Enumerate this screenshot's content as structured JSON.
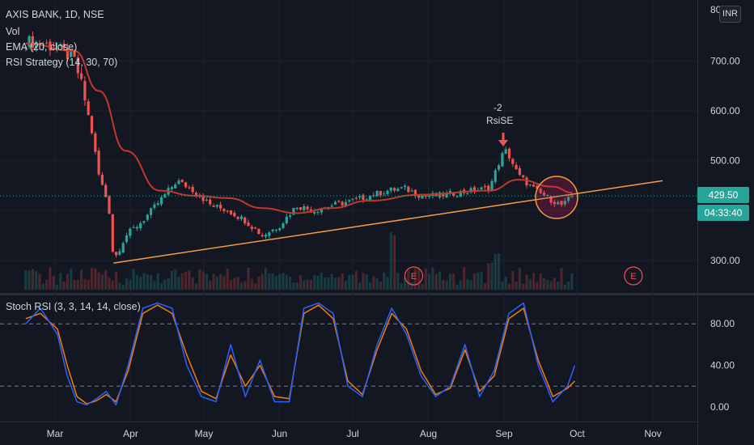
{
  "header": {
    "symbol_title": "AXIS BANK, 1D, NSE",
    "indicator_vol": "Vol",
    "indicator_ema": "EMA (20, close)",
    "indicator_rsi_strategy": "RSI Strategy (14, 30, 70)",
    "currency": "INR"
  },
  "price_labels": {
    "last_price": "429.50",
    "countdown": "04:33:40",
    "top_cutoff": "80"
  },
  "signal": {
    "count": "-2",
    "name": "RsiSE"
  },
  "earnings_marker": "E",
  "colors": {
    "up": "#26a69a",
    "down": "#ef5350",
    "ema": "#c0392b",
    "trendline": "#f59b42",
    "stoch_k": "#2962ff",
    "stoch_d": "#f57c00",
    "background": "#131722",
    "grid": "#1e222d"
  },
  "chart_data": [
    {
      "type": "candlestick",
      "title": "AXIS BANK, 1D, NSE",
      "y_ticks": [
        "300.00",
        "400.00",
        "500.00",
        "600.00",
        "700.00"
      ],
      "x_ticks": [
        "Mar",
        "Apr",
        "May",
        "Jun",
        "Jul",
        "Aug",
        "Sep",
        "Oct",
        "Nov"
      ],
      "ylim": [
        258,
        805
      ],
      "last_price": 429.5,
      "ohlc_close_path": [
        [
          "Feb-18",
          740
        ],
        [
          "Feb-25",
          735
        ],
        [
          "Mar-04",
          720
        ],
        [
          "Mar-09",
          700
        ],
        [
          "Mar-12",
          650
        ],
        [
          "Mar-16",
          560
        ],
        [
          "Mar-19",
          470
        ],
        [
          "Mar-23",
          410
        ],
        [
          "Mar-25",
          300
        ],
        [
          "Mar-30",
          350
        ],
        [
          "Apr-06",
          380
        ],
        [
          "Apr-13",
          420
        ],
        [
          "Apr-20",
          460
        ],
        [
          "Apr-27",
          440
        ],
        [
          "May-04",
          410
        ],
        [
          "May-11",
          400
        ],
        [
          "May-18",
          380
        ],
        [
          "May-25",
          350
        ],
        [
          "Jun-01",
          370
        ],
        [
          "Jun-08",
          410
        ],
        [
          "Jun-15",
          400
        ],
        [
          "Jun-22",
          410
        ],
        [
          "Jul-01",
          420
        ],
        [
          "Jul-08",
          430
        ],
        [
          "Jul-15",
          440
        ],
        [
          "Jul-22",
          445
        ],
        [
          "Jul-29",
          430
        ],
        [
          "Aug-05",
          430
        ],
        [
          "Aug-12",
          435
        ],
        [
          "Aug-19",
          440
        ],
        [
          "Aug-26",
          445
        ],
        [
          "Aug-31",
          510
        ],
        [
          "Sep-02",
          520
        ],
        [
          "Sep-07",
          470
        ],
        [
          "Sep-14",
          440
        ],
        [
          "Sep-21",
          420
        ],
        [
          "Sep-25",
          410
        ],
        [
          "Sep-29",
          429.5
        ]
      ],
      "ema_path": [
        [
          "Feb-18",
          735
        ],
        [
          "Mar-09",
          720
        ],
        [
          "Mar-19",
          640
        ],
        [
          "Mar-30",
          520
        ],
        [
          "Apr-13",
          440
        ],
        [
          "Apr-27",
          430
        ],
        [
          "May-11",
          425
        ],
        [
          "May-25",
          405
        ],
        [
          "Jun-08",
          395
        ],
        [
          "Jun-22",
          405
        ],
        [
          "Jul-08",
          420
        ],
        [
          "Jul-29",
          432
        ],
        [
          "Aug-26",
          440
        ],
        [
          "Sep-07",
          462
        ],
        [
          "Sep-21",
          448
        ],
        [
          "Sep-29",
          436
        ]
      ],
      "trendline": [
        [
          "Mar-25",
          295
        ],
        [
          "Nov-05",
          460
        ]
      ],
      "events": [
        {
          "type": "signal",
          "date": "Aug-31",
          "label": "-2 RsiSE"
        },
        {
          "type": "earnings",
          "date": "Jul-26",
          "label": "E"
        },
        {
          "type": "earnings",
          "date": "Oct-24",
          "label": "E"
        }
      ]
    },
    {
      "type": "line",
      "title": "Stoch RSI (3, 3, 14, 14, close)",
      "y_ticks": [
        "0.00",
        "40.00",
        "80.00"
      ],
      "ylim": [
        -5,
        100
      ],
      "levels": [
        20,
        80
      ],
      "x": [
        "Feb-18",
        "Feb-24",
        "Mar-02",
        "Mar-06",
        "Mar-10",
        "Mar-14",
        "Mar-18",
        "Mar-22",
        "Mar-26",
        "Mar-31",
        "Apr-06",
        "Apr-12",
        "Apr-18",
        "Apr-24",
        "Apr-30",
        "May-06",
        "May-12",
        "May-18",
        "May-24",
        "May-30",
        "Jun-05",
        "Jun-11",
        "Jun-17",
        "Jun-23",
        "Jun-29",
        "Jul-05",
        "Jul-11",
        "Jul-17",
        "Jul-23",
        "Jul-29",
        "Aug-04",
        "Aug-10",
        "Aug-16",
        "Aug-22",
        "Aug-28",
        "Sep-03",
        "Sep-09",
        "Sep-15",
        "Sep-21",
        "Sep-27",
        "Sep-30"
      ],
      "series": [
        {
          "values": [
            80,
            95,
            70,
            30,
            5,
            2,
            8,
            15,
            2,
            40,
            95,
            100,
            95,
            40,
            10,
            5,
            60,
            10,
            45,
            5,
            5,
            95,
            100,
            90,
            20,
            10,
            60,
            95,
            70,
            30,
            10,
            20,
            60,
            10,
            35,
            90,
            100,
            40,
            5,
            20,
            40
          ]
        },
        {
          "values": [
            85,
            90,
            75,
            40,
            10,
            3,
            6,
            12,
            5,
            35,
            90,
            98,
            90,
            50,
            15,
            8,
            50,
            20,
            40,
            10,
            8,
            90,
            98,
            85,
            25,
            12,
            55,
            90,
            75,
            35,
            12,
            18,
            55,
            15,
            30,
            85,
            95,
            45,
            10,
            18,
            25
          ]
        }
      ]
    }
  ]
}
